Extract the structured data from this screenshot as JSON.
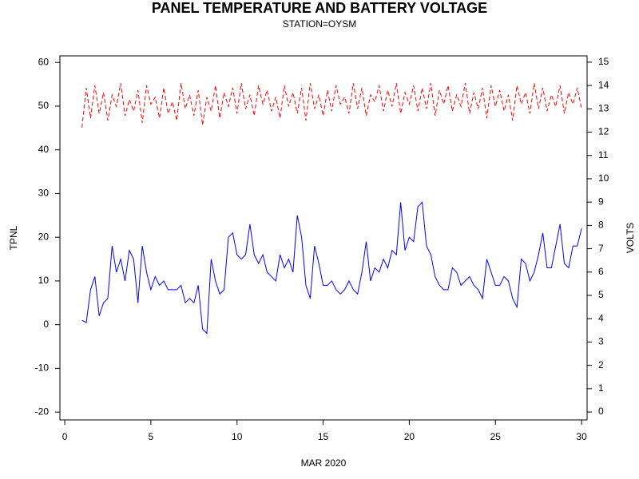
{
  "chart_data": {
    "type": "line",
    "title": "PANEL TEMPERATURE AND BATTERY VOLTAGE",
    "subtitle": "STATION=OYSM",
    "x_label": "MAR 2020",
    "y_label": "TPNL",
    "y2_label": "VOLTS",
    "xlim": [
      -0.28,
      30.32
    ],
    "xticks": [
      0,
      5,
      10,
      15,
      20,
      25,
      30
    ],
    "ylim": [
      -21.8,
      61.5
    ],
    "yticks": [
      -20,
      -10,
      0,
      10,
      20,
      30,
      40,
      50,
      60
    ],
    "y2lim": [
      -0.34,
      15.27
    ],
    "y2ticks": [
      0,
      1,
      2,
      3,
      4,
      5,
      6,
      7,
      8,
      9,
      10,
      11,
      12,
      13,
      14,
      15
    ],
    "x": [
      1,
      1.25,
      1.5,
      1.75,
      2,
      2.25,
      2.5,
      2.75,
      3,
      3.25,
      3.5,
      3.75,
      4,
      4.25,
      4.5,
      4.75,
      5,
      5.25,
      5.5,
      5.75,
      6,
      6.25,
      6.5,
      6.75,
      7,
      7.25,
      7.5,
      7.75,
      8,
      8.25,
      8.5,
      8.75,
      9,
      9.25,
      9.5,
      9.75,
      10,
      10.25,
      10.5,
      10.75,
      11,
      11.25,
      11.5,
      11.75,
      12,
      12.25,
      12.5,
      12.75,
      13,
      13.25,
      13.5,
      13.75,
      14,
      14.25,
      14.5,
      14.75,
      15,
      15.25,
      15.5,
      15.75,
      16,
      16.25,
      16.5,
      16.75,
      17,
      17.25,
      17.5,
      17.75,
      18,
      18.25,
      18.5,
      18.75,
      19,
      19.25,
      19.5,
      19.75,
      20,
      20.25,
      20.5,
      20.75,
      21,
      21.25,
      21.5,
      21.75,
      22,
      22.25,
      22.5,
      22.75,
      23,
      23.25,
      23.5,
      23.75,
      24,
      24.25,
      24.5,
      24.75,
      25,
      25.25,
      25.5,
      25.75,
      26,
      26.25,
      26.5,
      26.75,
      27,
      27.25,
      27.5,
      27.75,
      28,
      28.25,
      28.5,
      28.75,
      29,
      29.25,
      29.5,
      29.75,
      30
    ],
    "series": [
      {
        "color": "#0000ff",
        "values": [
          1,
          0.5,
          8,
          11,
          2,
          5,
          6,
          18,
          12,
          15,
          10,
          17,
          15,
          5,
          18,
          12,
          8,
          11,
          9,
          10,
          8,
          8,
          8,
          9,
          5,
          6,
          5,
          9,
          -1,
          -2,
          15,
          10,
          7,
          8,
          20,
          21,
          16,
          15,
          16,
          23,
          16,
          14,
          16,
          12,
          11,
          10,
          16,
          13,
          15,
          12,
          25,
          20,
          9,
          6,
          18,
          14,
          9,
          9,
          10,
          8,
          7,
          8,
          10,
          8,
          7,
          12,
          19,
          10,
          13,
          12,
          15,
          13,
          17,
          16,
          28,
          17,
          20,
          19,
          27,
          28,
          18,
          16,
          11,
          9,
          8,
          8,
          13,
          12,
          9,
          10,
          11,
          9,
          8,
          6,
          15,
          12,
          9,
          9,
          11,
          10,
          6,
          4,
          15,
          14,
          10,
          12,
          16,
          21,
          13,
          13,
          18,
          23,
          14,
          13,
          18,
          18,
          22
        ]
      },
      {
        "color": "#ff0000",
        "axis": "y2",
        "dashed": true,
        "values": [
          12.2,
          13.9,
          12.6,
          14.0,
          12.8,
          13.7,
          12.5,
          13.6,
          13.1,
          14.1,
          12.7,
          13.4,
          12.9,
          13.8,
          12.4,
          14.0,
          13.2,
          13.5,
          12.6,
          13.9,
          12.8,
          13.3,
          12.5,
          14.1,
          13.0,
          13.6,
          12.7,
          13.8,
          12.3,
          13.5,
          12.9,
          14.0,
          12.6,
          13.7,
          13.1,
          13.9,
          12.8,
          14.1,
          13.0,
          13.6,
          12.7,
          14.0,
          13.2,
          13.8,
          12.9,
          13.5,
          12.6,
          14.0,
          13.1,
          13.7,
          12.8,
          13.9,
          12.5,
          14.1,
          13.0,
          13.6,
          12.7,
          13.8,
          12.9,
          14.0,
          13.2,
          13.5,
          12.8,
          14.1,
          13.0,
          13.9,
          12.7,
          13.6,
          13.3,
          14.0,
          12.9,
          13.8,
          13.1,
          14.1,
          12.8,
          13.7,
          13.2,
          14.0,
          12.9,
          13.9,
          13.0,
          14.1,
          12.7,
          13.8,
          13.2,
          14.0,
          12.9,
          13.6,
          13.1,
          14.1,
          12.8,
          13.7,
          13.0,
          13.9,
          12.6,
          14.0,
          13.1,
          13.8,
          12.9,
          13.6,
          12.5,
          14.0,
          13.2,
          13.7,
          12.8,
          14.1,
          13.0,
          13.9,
          12.9,
          13.6,
          13.1,
          14.0,
          12.8,
          13.7,
          13.2,
          13.9,
          13.0
        ]
      }
    ]
  }
}
